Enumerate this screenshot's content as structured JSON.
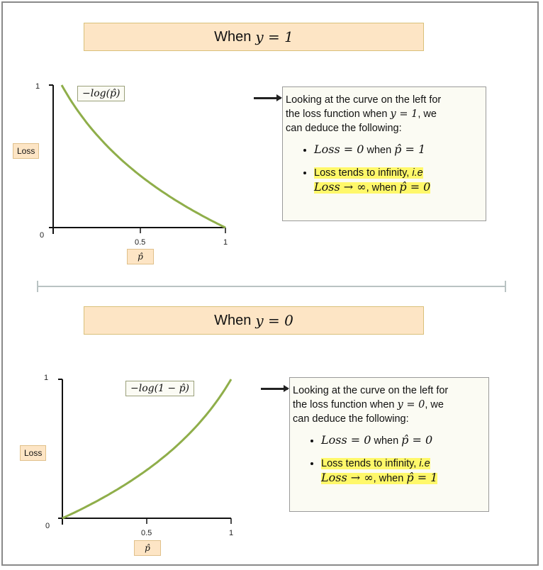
{
  "top": {
    "banner_text": "When",
    "banner_math": "y = 1",
    "curve_label": "−log(p̂)",
    "y_tag": "Loss",
    "x_tag": "p̂",
    "ticks": {
      "y_max": "1",
      "origin": "0",
      "x_mid": "0.5",
      "x_max": "1"
    },
    "note": {
      "intro_1": "Looking at the curve on the left for",
      "intro_2a": "the loss function when",
      "intro_2m": "y = 1",
      "intro_2b": ", we",
      "intro_3": "can deduce the following:",
      "b1_math": "Loss = 0",
      "b1_when": "when",
      "b1_math2": "p̂ = 1",
      "b2_text": "Loss tends to infinity,",
      "b2_ie": "i.e",
      "b2_math": "Loss → ∞",
      "b2_when": ", when",
      "b2_math2": "p̂ = 0"
    }
  },
  "bottom": {
    "banner_text": "When",
    "banner_math": "y = 0",
    "curve_label": "−log(1 − p̂)",
    "y_tag": "Loss",
    "x_tag": "p̂",
    "ticks": {
      "y_max": "1",
      "origin": "0",
      "x_mid": "0.5",
      "x_max": "1"
    },
    "note": {
      "intro_1": "Looking at the curve on the left for",
      "intro_2a": "the loss function when",
      "intro_2m": "y = 0",
      "intro_2b": ", we",
      "intro_3": "can deduce the following:",
      "b1_math": "Loss = 0",
      "b1_when": "when",
      "b1_math2": "p̂ = 0",
      "b2_text": "Loss tends to infinity,",
      "b2_ie": "i.e",
      "b2_math": "Loss → ∞",
      "b2_when": ", when",
      "b2_math2": "p̂ = 1"
    }
  },
  "colors": {
    "curve": "#8fae4a",
    "banner": "#fde5c5",
    "highlight": "#fff86a",
    "divider": "#b9c3c3"
  }
}
